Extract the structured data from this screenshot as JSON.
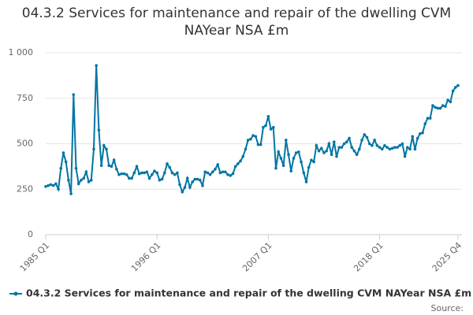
{
  "chart_data": {
    "type": "line",
    "title": "04.3.2 Services for maintenance and repair of the dwelling CVM NAYear NSA £m",
    "source": "Source:",
    "categories": [
      "1985 Q1",
      null,
      null,
      null,
      null,
      null,
      null,
      null,
      null,
      null,
      null,
      null,
      null,
      null,
      null,
      null,
      null,
      null,
      null,
      null,
      null,
      null,
      null,
      null,
      null,
      null,
      null,
      null,
      null,
      null,
      null,
      null,
      null,
      null,
      null,
      null,
      null,
      null,
      null,
      null,
      null,
      null,
      null,
      null,
      "1996 Q1",
      null,
      null,
      null,
      null,
      null,
      null,
      null,
      null,
      null,
      null,
      null,
      null,
      null,
      null,
      null,
      null,
      null,
      null,
      null,
      null,
      null,
      null,
      null,
      null,
      null,
      null,
      null,
      null,
      null,
      null,
      null,
      null,
      null,
      null,
      null,
      null,
      null,
      null,
      null,
      null,
      null,
      null,
      null,
      "2007 Q1",
      null,
      null,
      null,
      null,
      null,
      null,
      null,
      null,
      null,
      null,
      null,
      null,
      null,
      null,
      null,
      null,
      null,
      null,
      null,
      null,
      null,
      null,
      null,
      null,
      null,
      null,
      null,
      null,
      null,
      null,
      null,
      null,
      null,
      null,
      null,
      null,
      null,
      null,
      null,
      null,
      null,
      null,
      null,
      "2018 Q1",
      null,
      null,
      null,
      null,
      null,
      null,
      null,
      null,
      null,
      null,
      null,
      null,
      null,
      null,
      null,
      null,
      null,
      null,
      null,
      null,
      null,
      null,
      null,
      null,
      null,
      null,
      null,
      null,
      null,
      null,
      "2025 Q4"
    ],
    "series": [
      {
        "name": "04.3.2 Services for maintenance and repair of the dwelling CVM NAYear NSA £m",
        "color": "#0075a3",
        "values": [
          265,
          270,
          275,
          270,
          280,
          250,
          365,
          450,
          400,
          300,
          225,
          770,
          365,
          280,
          300,
          310,
          345,
          290,
          300,
          470,
          930,
          575,
          380,
          490,
          470,
          380,
          375,
          410,
          360,
          330,
          335,
          335,
          330,
          310,
          310,
          340,
          375,
          335,
          340,
          340,
          345,
          310,
          330,
          350,
          340,
          300,
          305,
          340,
          390,
          370,
          340,
          330,
          340,
          275,
          235,
          260,
          310,
          260,
          290,
          305,
          305,
          300,
          270,
          345,
          340,
          330,
          345,
          360,
          385,
          340,
          345,
          345,
          330,
          325,
          335,
          375,
          390,
          405,
          430,
          470,
          520,
          525,
          545,
          540,
          495,
          495,
          590,
          600,
          650,
          580,
          590,
          365,
          455,
          420,
          380,
          520,
          440,
          350,
          420,
          450,
          455,
          400,
          340,
          290,
          370,
          410,
          400,
          490,
          460,
          475,
          450,
          460,
          500,
          440,
          510,
          430,
          480,
          480,
          500,
          510,
          530,
          480,
          460,
          440,
          470,
          520,
          550,
          535,
          500,
          490,
          520,
          490,
          480,
          470,
          490,
          480,
          470,
          475,
          480,
          480,
          490,
          500,
          430,
          480,
          470,
          540,
          470,
          530,
          555,
          560,
          610,
          640,
          640,
          710,
          700,
          695,
          695,
          710,
          705,
          740,
          730,
          790,
          810,
          820
        ]
      }
    ],
    "ylim": [
      0,
      1000
    ],
    "yticks": [
      0,
      250,
      500,
      750,
      {
        "value": 1000,
        "label": "1 000"
      }
    ],
    "grid": true
  }
}
